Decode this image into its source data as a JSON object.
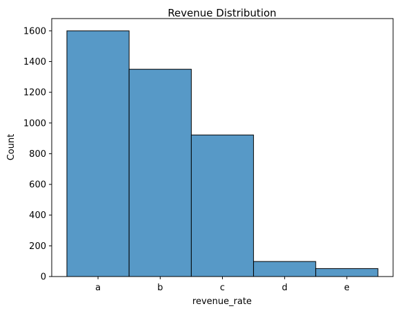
{
  "chart_data": {
    "type": "bar",
    "title": "Revenue Distribution",
    "xlabel": "revenue_rate",
    "ylabel": "Count",
    "categories": [
      "a",
      "b",
      "c",
      "d",
      "e"
    ],
    "values": [
      1600,
      1350,
      922,
      98,
      52
    ],
    "ylim": [
      0,
      1680
    ],
    "yticks": [
      0,
      200,
      400,
      600,
      800,
      1000,
      1200,
      1400,
      1600
    ],
    "grid": false,
    "legend": "none",
    "bar_color": "#5799c7",
    "edge_color": "#000000"
  }
}
